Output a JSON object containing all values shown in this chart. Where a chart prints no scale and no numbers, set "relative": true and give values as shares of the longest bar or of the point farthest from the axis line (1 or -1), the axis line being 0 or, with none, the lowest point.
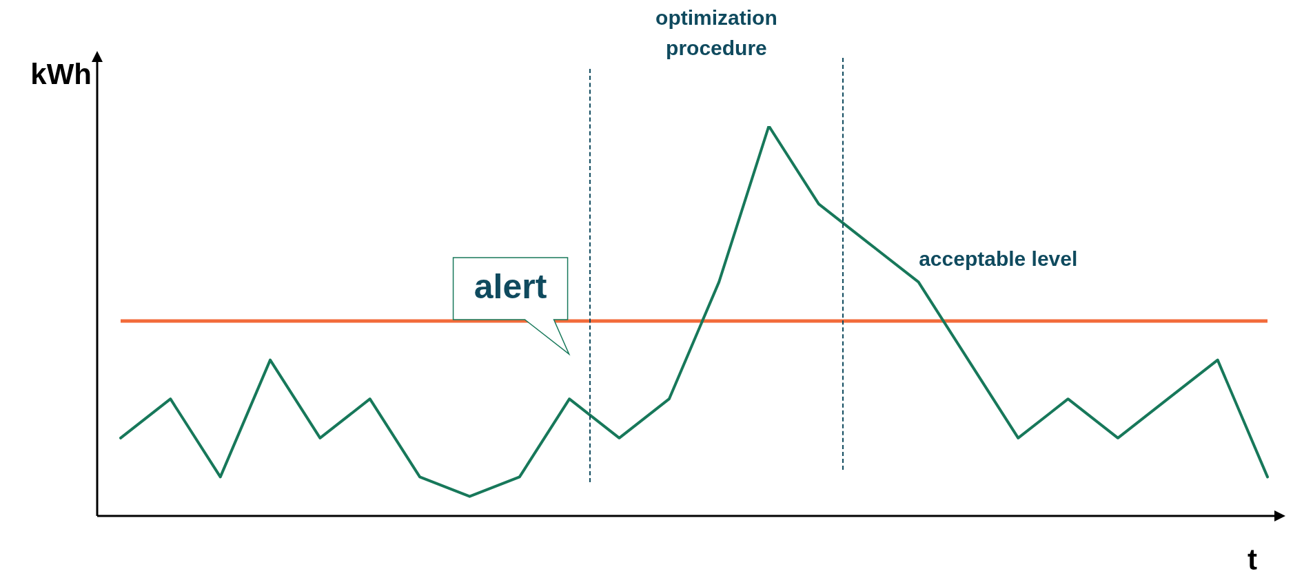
{
  "chart_data": {
    "type": "line",
    "relative": true,
    "xlabel": "t",
    "ylabel": "kWh",
    "categories": [
      null,
      null,
      null,
      null,
      null,
      null,
      null,
      null,
      null,
      null,
      null,
      null,
      null,
      null,
      null,
      null,
      null,
      null,
      null,
      null,
      null,
      null,
      null,
      null
    ],
    "legend": false,
    "marker": "none",
    "line_style": "solid",
    "series": [
      {
        "color": "#17785a",
        "values": [
          0.2,
          0.3,
          0.1,
          0.4,
          0.2,
          0.3,
          0.1,
          0.05,
          0.1,
          0.3,
          0.2,
          0.3,
          0.6,
          1,
          0.8,
          0.7,
          0.6,
          0.4,
          0.2,
          0.3,
          0.2,
          0.3,
          0.4,
          0.1
        ]
      }
    ],
    "ref_lines": [
      {
        "axis": "y",
        "value": 0.5,
        "label": "acceptable level",
        "color": "#f26b3a",
        "line_style": "solid"
      }
    ],
    "annotations": [
      "optimization procedure",
      "alert"
    ]
  }
}
